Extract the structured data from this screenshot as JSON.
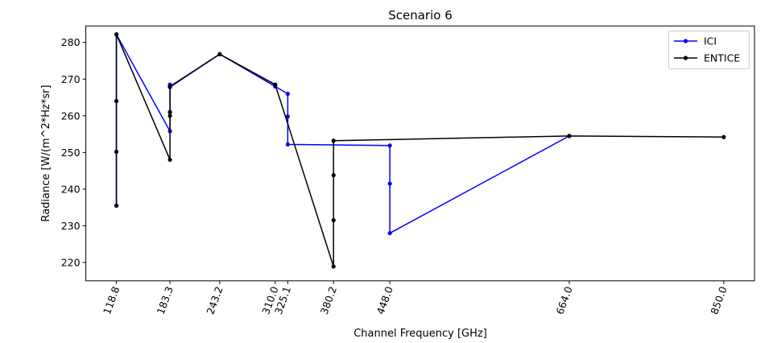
{
  "chart_data": {
    "type": "line",
    "title": "Scenario 6",
    "xlabel": "Channel Frequency [GHz]",
    "ylabel": "Radiance [W/(m^2*Hz*sr]",
    "x_ticks": [
      "118.8",
      "183.3",
      "243.2",
      "310.0",
      "325.1",
      "380.2",
      "448.0",
      "664.0",
      "850.0"
    ],
    "y_ticks": [
      220,
      230,
      240,
      250,
      260,
      270,
      280
    ],
    "ylim": [
      215.0,
      284.5
    ],
    "xlim": [
      82,
      887
    ],
    "grid": false,
    "legend_position": "top-right",
    "series": [
      {
        "name": "ICI",
        "color": "#0000ff",
        "x": [
          118.8,
          118.8,
          118.8,
          118.8,
          183.3,
          183.3,
          183.3,
          183.3,
          243.2,
          310.0,
          325.1,
          325.1,
          325.1,
          448.0,
          448.0,
          448.0,
          664.0
        ],
        "y": [
          235.5,
          250.2,
          264.0,
          282.2,
          255.8,
          261.0,
          268.5,
          267.8,
          276.8,
          268.0,
          266.0,
          259.8,
          252.2,
          251.9,
          241.5,
          228.0,
          254.5
        ]
      },
      {
        "name": "ENTICE",
        "color": "#000000",
        "x": [
          118.8,
          118.8,
          118.8,
          118.8,
          183.3,
          183.3,
          183.3,
          183.3,
          243.2,
          310.0,
          380.2,
          380.2,
          380.2,
          380.2,
          664.0,
          850.0
        ],
        "y": [
          235.5,
          250.2,
          264.0,
          282.2,
          248.0,
          260.0,
          261.0,
          268.0,
          276.8,
          268.5,
          218.9,
          231.5,
          243.8,
          253.2,
          254.5,
          254.2
        ]
      }
    ]
  }
}
